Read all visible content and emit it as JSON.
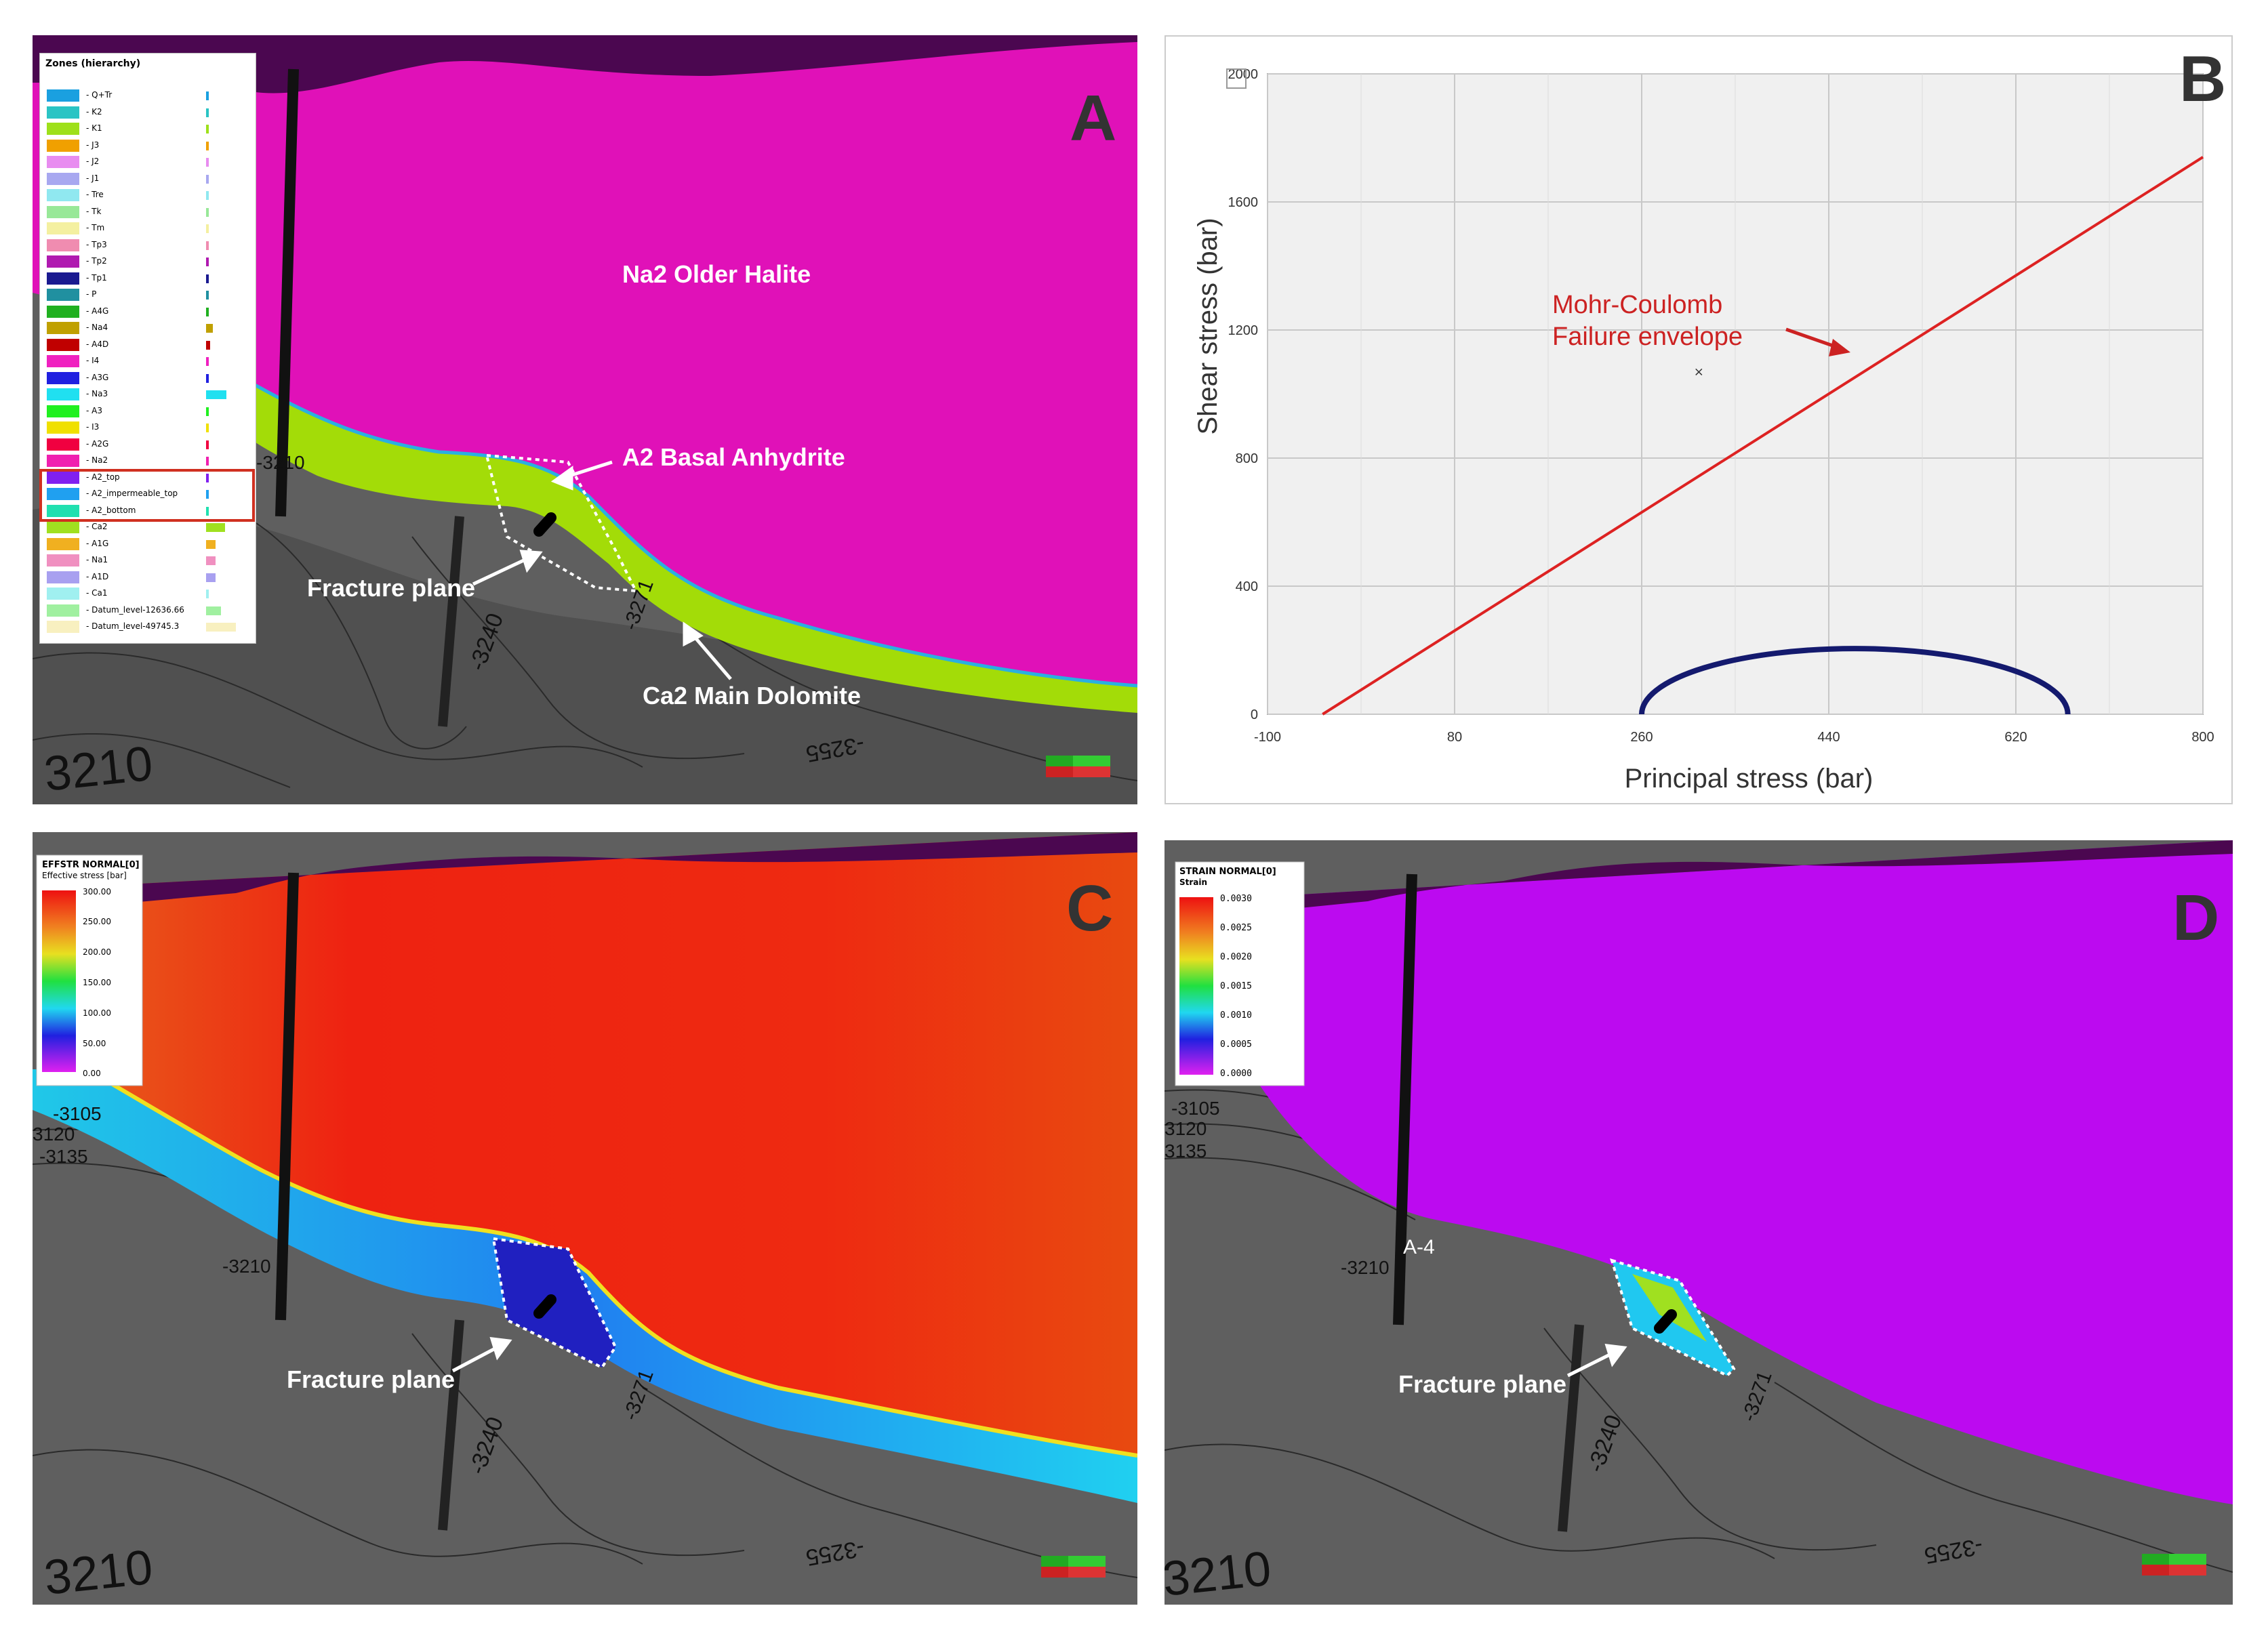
{
  "panels": {
    "a": {
      "letter": "A",
      "legend_title": "Zones (hierarchy)",
      "zones": [
        {
          "name": "Q+Tr",
          "color": "#1aa0e0"
        },
        {
          "name": "K2",
          "color": "#2ac4c4"
        },
        {
          "name": "K1",
          "color": "#9ee01a"
        },
        {
          "name": "J3",
          "color": "#f0a000"
        },
        {
          "name": "J2",
          "color": "#e88cf0"
        },
        {
          "name": "J1",
          "color": "#a8a8f0"
        },
        {
          "name": "Tre",
          "color": "#90e8f0"
        },
        {
          "name": "Tk",
          "color": "#98e898"
        },
        {
          "name": "Tm",
          "color": "#f4f0a0"
        },
        {
          "name": "Tp3",
          "color": "#f08cb0"
        },
        {
          "name": "Tp2",
          "color": "#b01ab0"
        },
        {
          "name": "Tp1",
          "color": "#1a1a90"
        },
        {
          "name": "P",
          "color": "#2090a0"
        },
        {
          "name": "A4G",
          "color": "#20b020"
        },
        {
          "name": "Na4",
          "color": "#c0a000"
        },
        {
          "name": "A4D",
          "color": "#c00000"
        },
        {
          "name": "I4",
          "color": "#f020c0"
        },
        {
          "name": "A3G",
          "color": "#2020e0"
        },
        {
          "name": "Na3",
          "color": "#20e0f0"
        },
        {
          "name": "A3",
          "color": "#20f020"
        },
        {
          "name": "I3",
          "color": "#f0e000"
        },
        {
          "name": "A2G",
          "color": "#f00040"
        },
        {
          "name": "Na2",
          "color": "#f020b0"
        },
        {
          "name": "A2_top",
          "color": "#8020f0"
        },
        {
          "name": "A2_impermeable_top",
          "color": "#20a0f0"
        },
        {
          "name": "A2_bottom",
          "color": "#20e0b0"
        },
        {
          "name": "Ca2",
          "color": "#a0e020"
        },
        {
          "name": "A1G",
          "color": "#f0b020"
        },
        {
          "name": "Na1",
          "color": "#f090c0"
        },
        {
          "name": "A1D",
          "color": "#a8a0f0"
        },
        {
          "name": "Ca1",
          "color": "#a0f0f0"
        },
        {
          "name": "Datum_level-12636.66",
          "color": "#a0f0a0"
        },
        {
          "name": "Datum_level-49745.3",
          "color": "#f8f0c0"
        }
      ],
      "labels": {
        "halite": "Na2 Older Halite",
        "anhydrite": "A2 Basal Anhydrite",
        "fracture": "Fracture plane",
        "dolomite": "Ca2 Main Dolomite"
      },
      "contours": [
        "3210",
        "-3240",
        "-3271",
        "-3255",
        "-3210"
      ]
    },
    "b": {
      "letter": "B"
    },
    "c": {
      "letter": "C",
      "legend_title_1": "EFFSTR NORMAL[0]",
      "legend_title_2": "Effective stress [bar]",
      "scale": [
        "300.00",
        "250.00",
        "200.00",
        "150.00",
        "100.00",
        "50.00",
        "0.00"
      ],
      "fracture": "Fracture plane",
      "contours": [
        "-3105",
        "3120",
        "-3135",
        "-3210",
        "-3240",
        "-3271",
        "-3255",
        "3210"
      ]
    },
    "d": {
      "letter": "D",
      "legend_title_1": "STRAIN NORMAL[0]",
      "legend_title_2": "Strain",
      "scale": [
        "0.0030",
        "0.0025",
        "0.0020",
        "0.0015",
        "0.0010",
        "0.0005",
        "0.0000"
      ],
      "fracture": "Fracture plane",
      "well": "A-4",
      "contours": [
        "-3105",
        "3120",
        "3135",
        "-3210",
        "-3240",
        "-3271",
        "-3255",
        "3210"
      ]
    }
  },
  "chart_data": {
    "type": "line",
    "title": "",
    "xlabel": "Principal stress (bar)",
    "ylabel": "Shear stress (bar)",
    "xlim": [
      -100,
      800
    ],
    "ylim": [
      0,
      2000
    ],
    "x_ticks": [
      "-100",
      "80",
      "260",
      "440",
      "620",
      "800"
    ],
    "y_ticks": [
      "0",
      "400",
      "800",
      "1200",
      "1600",
      "2000"
    ],
    "grid": true,
    "annotation": [
      "Mohr-Coulomb",
      "Failure envelope"
    ],
    "series": [
      {
        "name": "Mohr-Coulomb failure envelope",
        "color": "#dd2222",
        "x": [
          -47,
          800
        ],
        "y": [
          0,
          1740
        ]
      },
      {
        "name": "Mohr circle",
        "color": "#141a6e",
        "center": 465,
        "radius": 205
      }
    ],
    "marker": {
      "x": 315,
      "y": 1070
    }
  }
}
